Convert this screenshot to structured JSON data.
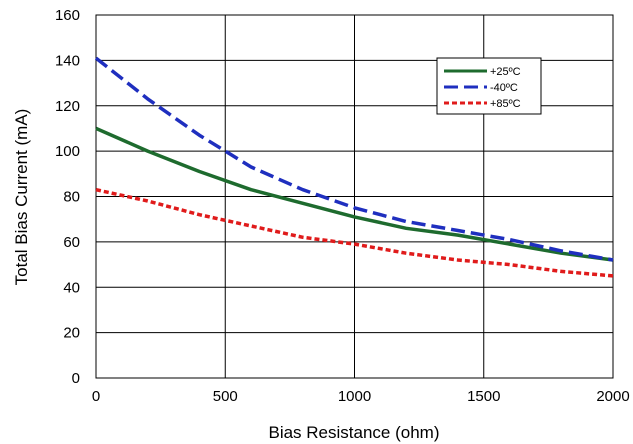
{
  "chart_data": {
    "type": "line",
    "title": "",
    "xlabel": "Bias Resistance (ohm)",
    "ylabel": "Total Bias Current (mA)",
    "xlim": [
      0,
      2000
    ],
    "ylim": [
      0,
      160
    ],
    "xticks": [
      0,
      500,
      1000,
      1500,
      2000
    ],
    "yticks": [
      0,
      20,
      40,
      60,
      80,
      100,
      120,
      140,
      160
    ],
    "grid": true,
    "legend_position": "top-right",
    "series": [
      {
        "name": "+25ºC",
        "color": "#1e6b2e",
        "dash": "solid",
        "x": [
          0,
          200,
          400,
          600,
          800,
          1000,
          1200,
          1400,
          1600,
          1800,
          2000
        ],
        "y": [
          110,
          100,
          91,
          83,
          77,
          71,
          66,
          63,
          59,
          55,
          52
        ]
      },
      {
        "name": "-40ºC",
        "color": "#1f2fbf",
        "dash": "dashed",
        "x": [
          0,
          200,
          400,
          600,
          800,
          1000,
          1200,
          1400,
          1600,
          1800,
          2000
        ],
        "y": [
          141,
          123,
          107,
          93,
          83,
          75,
          69,
          65,
          61,
          56,
          52
        ]
      },
      {
        "name": "+85ºC",
        "color": "#e01b1b",
        "dash": "dotted",
        "x": [
          0,
          200,
          400,
          600,
          800,
          1000,
          1200,
          1400,
          1600,
          1800,
          2000
        ],
        "y": [
          83,
          78,
          72,
          67,
          62,
          59,
          55,
          52,
          50,
          47,
          45
        ]
      }
    ]
  }
}
